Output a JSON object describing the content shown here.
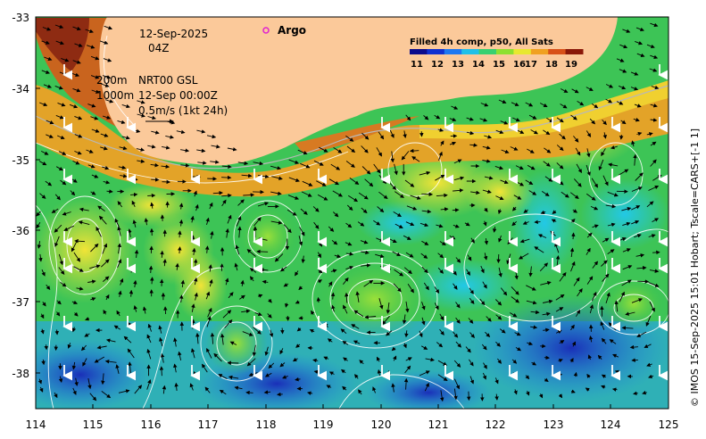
{
  "map": {
    "date_label": "12-Sep-2025",
    "time_label": "04Z",
    "depth_label": "200m",
    "product_label": "NRT00 GSL",
    "ref_depth_label": "1000m",
    "ref_time_label": "12-Sep 00:00Z",
    "velocity_scale_label": "0.5m/s (1kt 24h)",
    "argo_label": "Argo",
    "colorbar_title": "Filled 4h comp, p50, All Sats",
    "colorbar_ticks": [
      "11",
      "12",
      "13",
      "14",
      "15",
      "16",
      "17",
      "18",
      "19"
    ],
    "colorbar_colors": [
      "#0b0b8c",
      "#1030d0",
      "#1e78f0",
      "#20c0e8",
      "#38d070",
      "#8ee030",
      "#e8e830",
      "#f0a020",
      "#d85018",
      "#8a1808"
    ],
    "x_ticks": [
      "114",
      "115",
      "116",
      "117",
      "118",
      "119",
      "120",
      "121",
      "122",
      "123",
      "124",
      "125"
    ],
    "y_ticks": [
      "-33",
      "-34",
      "-35",
      "-36",
      "-37",
      "-38"
    ],
    "credit": "© IMOS 15-Sep-2025 15:01 Hobart; Tscale=CARS+[-1 1]",
    "land_color": "#fbc99a",
    "argo_color": "#e020d0"
  }
}
